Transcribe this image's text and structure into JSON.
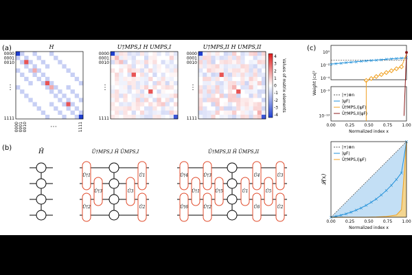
{
  "panels": {
    "a": "(a)",
    "b": "(b)",
    "c": "(c)"
  },
  "heatmaps": [
    {
      "title": "H"
    },
    {
      "title": "U†MPS,I H UMPS,I"
    },
    {
      "title": "U†MPS,II H UMPS,II"
    }
  ],
  "basis_labels": {
    "top": [
      "0000",
      "0001",
      "0010"
    ],
    "bottom": "1111",
    "ellipsis": "⋮",
    "hellipsis": "⋯",
    "x_bottom": [
      "0000",
      "0001",
      "0010"
    ]
  },
  "colorbar": {
    "label": "Values of matrix elements",
    "ticks": [
      "4",
      "3",
      "2",
      "1",
      "0",
      "-1",
      "-2",
      "-3",
      "-4"
    ],
    "min_color": "#1f3fd1",
    "max_color": "#e01b1b"
  },
  "circuits": [
    {
      "title": "Ĥ"
    },
    {
      "title": "Û†MPS,I Ĥ ÛMPS,I",
      "left_gates": [
        "Û†1",
        "Û†3",
        "Û†2"
      ],
      "right_gates": [
        "Û1",
        "Û3",
        "Û2"
      ]
    },
    {
      "title": "Û†MPS,II Ĥ ÛMPS,II",
      "left_gates": [
        "Û†4",
        "Û†1",
        "Û†6",
        "Û†3",
        "Û†5",
        "Û†2"
      ],
      "right_gates": [
        "Û4",
        "Û1",
        "Û6",
        "Û3",
        "Û5",
        "Û2"
      ]
    }
  ],
  "chart_data": [
    {
      "type": "scatter",
      "ylabel": "Weight |cx|²",
      "xlabel": "Normalized index x",
      "x_ticks": [
        "0.00",
        "0.25",
        "0.50",
        "0.75",
        "1.00"
      ],
      "y_ticks_upper": [
        "10⁰",
        "10⁻²",
        "10⁻⁴"
      ],
      "y_ticks_lower": [
        "10⁻⁹",
        "10⁻¹³"
      ],
      "legend": [
        "|+⟩⊗n",
        "|ψF⟩",
        "Û†MPS,I|ψF⟩",
        "Û†MPS,II|ψF⟩"
      ],
      "colors": {
        "plus": "#555555",
        "psiF": "#1f8fd8",
        "mpsI": "#f0a020",
        "mpsII": "#8b1a1a"
      },
      "series": [
        {
          "name": "|+⟩⊗n",
          "x": [
            0,
            1
          ],
          "y": [
            0.0625,
            0.0625
          ]
        },
        {
          "name": "|ψF⟩",
          "x": [
            0,
            0.067,
            0.133,
            0.2,
            0.267,
            0.333,
            0.4,
            0.467,
            0.533,
            0.6,
            0.667,
            0.733,
            0.8,
            0.867,
            0.933,
            1.0
          ],
          "y": [
            0.015,
            0.018,
            0.021,
            0.025,
            0.03,
            0.035,
            0.04,
            0.047,
            0.055,
            0.063,
            0.072,
            0.082,
            0.094,
            0.106,
            0.12,
            0.135
          ]
        },
        {
          "name": "Û†MPS,I|ψF⟩",
          "x": [
            0.467,
            0.533,
            0.6,
            0.667,
            0.733,
            0.8,
            0.867,
            0.933,
            1.0
          ],
          "y": [
            5e-05,
            0.0001,
            0.0002,
            0.0004,
            0.0008,
            0.0015,
            0.003,
            0.006,
            0.5
          ]
        },
        {
          "name": "Û†MPS,II|ψF⟩",
          "x": [
            0.967,
            1.0
          ],
          "y": [
            1e-13,
            0.9
          ]
        }
      ]
    },
    {
      "type": "line",
      "ylabel": "𝓛(x)",
      "xlabel": "Normalized index x",
      "x_ticks": [
        "0.00",
        "0.25",
        "0.50",
        "0.75",
        "1.00"
      ],
      "legend": [
        "|+⟩⊗n",
        "|ψF⟩",
        "Û†MPS,I|ψF⟩"
      ],
      "series": [
        {
          "name": "|+⟩⊗n",
          "x": [
            0,
            1
          ],
          "y": [
            0,
            1
          ]
        },
        {
          "name": "|ψF⟩",
          "x": [
            0,
            0.067,
            0.133,
            0.2,
            0.267,
            0.333,
            0.4,
            0.467,
            0.533,
            0.6,
            0.667,
            0.733,
            0.8,
            0.867,
            0.933,
            1.0
          ],
          "y": [
            0,
            0.012,
            0.028,
            0.046,
            0.068,
            0.094,
            0.124,
            0.158,
            0.198,
            0.243,
            0.295,
            0.355,
            0.423,
            0.5,
            0.588,
            1.0
          ]
        },
        {
          "name": "Û†MPS,I|ψF⟩",
          "x": [
            0,
            0.467,
            0.6,
            0.733,
            0.867,
            0.933,
            1.0
          ],
          "y": [
            0,
            0,
            0.003,
            0.01,
            0.03,
            0.1,
            1.0
          ]
        }
      ]
    }
  ]
}
